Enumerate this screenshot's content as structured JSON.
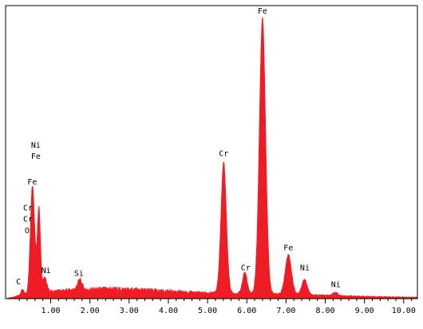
{
  "chart_data": {
    "type": "area",
    "title": "",
    "xlabel": "",
    "ylabel": "",
    "xlim": [
      -0.15,
      10.35
    ],
    "ylim": [
      0,
      1.0
    ],
    "grid": false,
    "legend": "none",
    "colors": {
      "fill": "#ee1c25",
      "frame": "#000000",
      "background": "#ffffff"
    },
    "x_ticks": [
      {
        "value": 1.0,
        "label": "1.00"
      },
      {
        "value": 2.0,
        "label": "2.00"
      },
      {
        "value": 3.0,
        "label": "3.00"
      },
      {
        "value": 4.0,
        "label": "4.00"
      },
      {
        "value": 5.0,
        "label": "5.00"
      },
      {
        "value": 6.0,
        "label": "6.00"
      },
      {
        "value": 7.0,
        "label": "7.00"
      },
      {
        "value": 8.0,
        "label": "8.00"
      },
      {
        "value": 9.0,
        "label": "9.00"
      },
      {
        "value": 10.0,
        "label": "10.00"
      }
    ],
    "background": [
      {
        "x": 0.5,
        "y": 0.02
      },
      {
        "x": 1.5,
        "y": 0.03
      },
      {
        "x": 2.5,
        "y": 0.035
      },
      {
        "x": 3.5,
        "y": 0.03
      },
      {
        "x": 5.0,
        "y": 0.02
      },
      {
        "x": 7.0,
        "y": 0.015
      },
      {
        "x": 9.0,
        "y": 0.008
      },
      {
        "x": 10.3,
        "y": 0.005
      }
    ],
    "peaks": [
      {
        "element": "C",
        "energy": 0.28,
        "intensity": 0.02,
        "width": 0.04
      },
      {
        "element": "O",
        "energy": 0.52,
        "intensity": 0.27,
        "width": 0.05
      },
      {
        "element": "Cr",
        "energy": 0.57,
        "intensity": 0.15,
        "width": 0.05
      },
      {
        "element": "Fe",
        "energy": 0.7,
        "intensity": 0.3,
        "width": 0.04
      },
      {
        "element": "Ni",
        "energy": 0.85,
        "intensity": 0.05,
        "width": 0.05
      },
      {
        "element": "Si",
        "energy": 1.74,
        "intensity": 0.035,
        "width": 0.06
      },
      {
        "element": "Cr",
        "energy": 5.41,
        "intensity": 0.46,
        "width": 0.07
      },
      {
        "element": "Cr",
        "energy": 5.95,
        "intensity": 0.075,
        "width": 0.06
      },
      {
        "element": "Fe",
        "energy": 6.4,
        "intensity": 0.97,
        "width": 0.08
      },
      {
        "element": "Fe",
        "energy": 7.06,
        "intensity": 0.14,
        "width": 0.08
      },
      {
        "element": "Ni",
        "energy": 7.47,
        "intensity": 0.055,
        "width": 0.07
      },
      {
        "element": "Ni",
        "energy": 8.26,
        "intensity": 0.012,
        "width": 0.06
      }
    ],
    "annotations": [
      {
        "label": "C",
        "x": 0.18,
        "y": 0.05
      },
      {
        "label": "O",
        "x": 0.4,
        "y": 0.23
      },
      {
        "label": "Cr",
        "x": 0.42,
        "y": 0.27
      },
      {
        "label": "Cr",
        "x": 0.42,
        "y": 0.31
      },
      {
        "label": "Fe",
        "x": 0.53,
        "y": 0.4
      },
      {
        "label": "Fe",
        "x": 0.62,
        "y": 0.49
      },
      {
        "label": "Ni",
        "x": 0.62,
        "y": 0.53
      },
      {
        "label": "Ni",
        "x": 0.88,
        "y": 0.09
      },
      {
        "label": "Si",
        "x": 1.72,
        "y": 0.08
      },
      {
        "label": "Cr",
        "x": 5.41,
        "y": 0.5
      },
      {
        "label": "Cr",
        "x": 5.97,
        "y": 0.1
      },
      {
        "label": "Fe",
        "x": 6.4,
        "y": 1.0
      },
      {
        "label": "Fe",
        "x": 7.06,
        "y": 0.17
      },
      {
        "label": "Ni",
        "x": 7.48,
        "y": 0.1
      },
      {
        "label": "Ni",
        "x": 8.27,
        "y": 0.04
      }
    ]
  }
}
